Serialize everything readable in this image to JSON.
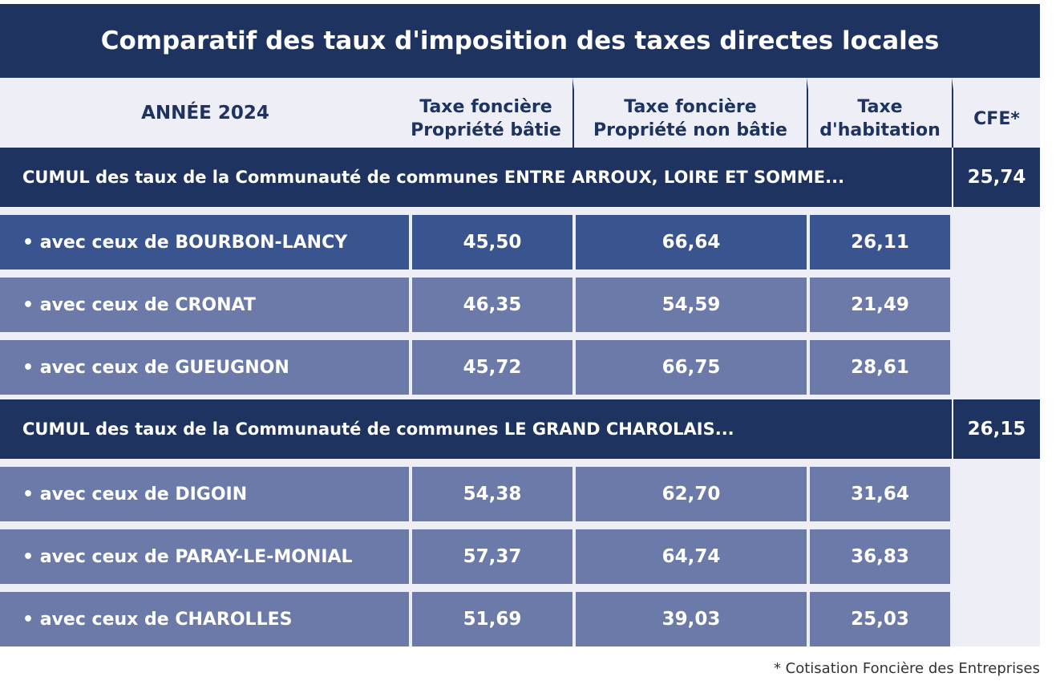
{
  "title": "Comparatif des taux d'imposition des taxes directes locales",
  "header": {
    "year": "ANNÉE 2024",
    "columns": [
      [
        "Taxe foncière",
        "Propriété bâtie"
      ],
      [
        "Taxe foncière",
        "Propriété non bâtie"
      ],
      [
        "Taxe",
        "d'habitation"
      ],
      [
        "CFE*"
      ]
    ]
  },
  "groups": [
    {
      "label": "CUMUL des taux de la Communauté de communes ENTRE ARROUX, LOIRE ET SOMME...",
      "cfe": "25,74",
      "rows": [
        {
          "label": "• avec ceux de BOURBON-LANCY",
          "values": [
            "45,50",
            "66,64",
            "26,11"
          ]
        },
        {
          "label": "• avec ceux de CRONAT",
          "values": [
            "46,35",
            "54,59",
            "21,49"
          ]
        },
        {
          "label": "• avec ceux de GUEUGNON",
          "values": [
            "45,72",
            "66,75",
            "28,61"
          ]
        }
      ]
    },
    {
      "label": "CUMUL des taux de la Communauté de communes LE GRAND CHAROLAIS...",
      "cfe": "26,15",
      "rows": [
        {
          "label": "• avec ceux de DIGOIN",
          "values": [
            "54,38",
            "62,70",
            "31,64"
          ]
        },
        {
          "label": "• avec ceux de PARAY-LE-MONIAL",
          "values": [
            "57,37",
            "64,74",
            "36,83"
          ]
        },
        {
          "label": "• avec ceux de CHAROLLES",
          "values": [
            "51,69",
            "39,03",
            "25,03"
          ]
        }
      ]
    }
  ],
  "footnote": "* Cotisation Foncière des Entreprises"
}
